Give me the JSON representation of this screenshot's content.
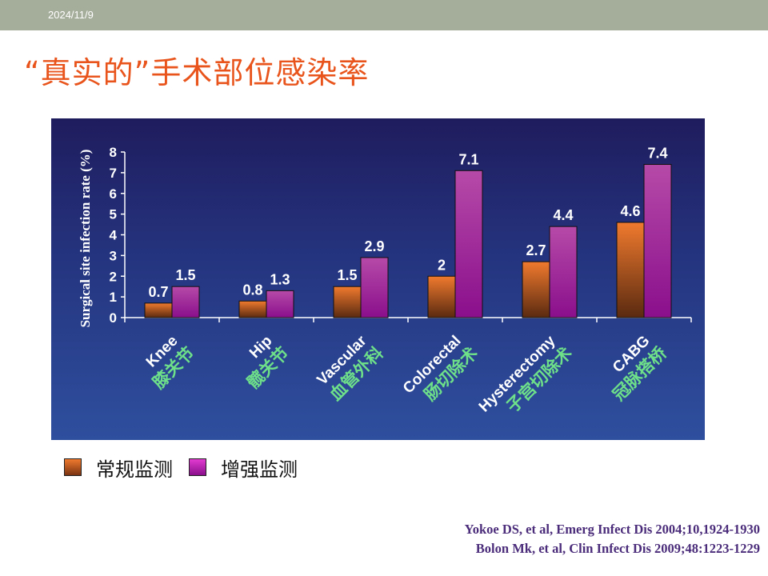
{
  "header": {
    "date": "2024/11/9"
  },
  "slide": {
    "title": "“真实的”手术部位感染率"
  },
  "legend": {
    "items": [
      {
        "label": "常规监测",
        "color": "#e36a23"
      },
      {
        "label": "增强监测",
        "color": "#c81fb0"
      }
    ]
  },
  "references": [
    "Yokoe DS, et al, Emerg Infect Dis 2004;10,1924-1930",
    "Bolon Mk, et al, Clin Infect Dis 2009;48:1223-1229"
  ],
  "chart_data": {
    "type": "bar",
    "ylabel": "Surgical site infection rate (%)",
    "ylim": [
      0,
      8
    ],
    "yticks": [
      0,
      1,
      2,
      3,
      4,
      5,
      6,
      7,
      8
    ],
    "categories": [
      {
        "en": "Knee",
        "zh": "膝关节"
      },
      {
        "en": "Hip",
        "zh": "髋关节"
      },
      {
        "en": "Vascular",
        "zh": "血管外科"
      },
      {
        "en": "Colorectal",
        "zh": "肠切除术"
      },
      {
        "en": "Hysterectomy",
        "zh": "子宫切除术"
      },
      {
        "en": "CABG",
        "zh": "冠脉搭桥"
      }
    ],
    "series": [
      {
        "name": "常规监测",
        "values": [
          0.7,
          0.8,
          1.5,
          2,
          2.7,
          4.6
        ],
        "labels": [
          "0.7",
          "0.8",
          "1.5",
          "2",
          "2.7",
          "4.6"
        ]
      },
      {
        "name": "增强监测",
        "values": [
          1.5,
          1.3,
          2.9,
          7.1,
          4.4,
          7.4
        ],
        "labels": [
          "1.5",
          "1.3",
          "2.9",
          "7.1",
          "4.4",
          "7.4"
        ]
      }
    ],
    "colors": {
      "routine_top": "#f07a2e",
      "routine_bottom": "#5a2a10",
      "enhanced_top": "#b64aa8",
      "enhanced_bottom": "#8a0f8c",
      "category_zh": "#6ee08a",
      "axis": "#ffffff"
    },
    "grid": false,
    "legend_position": "bottom-left"
  }
}
